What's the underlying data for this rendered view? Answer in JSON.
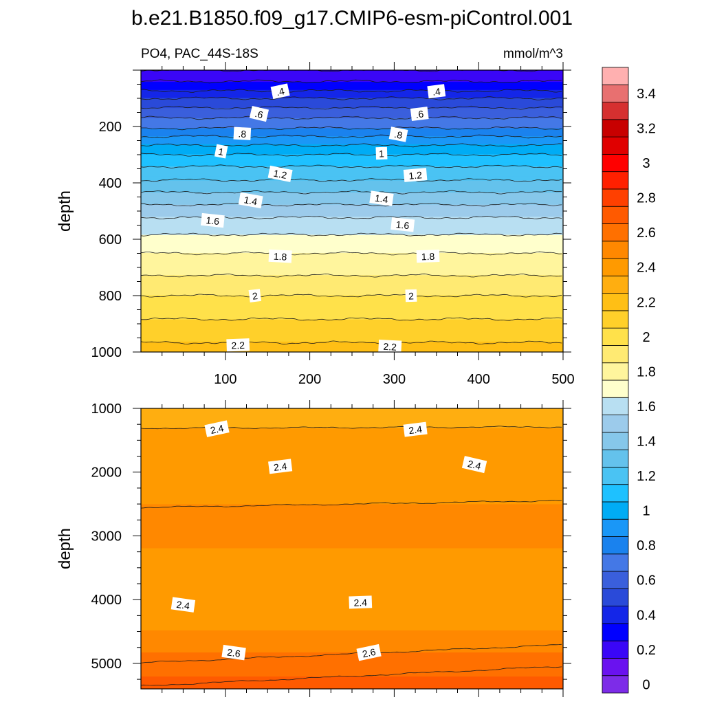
{
  "title": "b.e21.B1850.f09_g17.CMIP6-esm-piControl.001",
  "chart_data": [
    {
      "type": "heatmap",
      "panel": "upper",
      "left_label": "PO4, PAC_44S-18S",
      "right_label": "mmol/m^3",
      "ylabel": "depth",
      "xlabel": "",
      "xlim": [
        0,
        500
      ],
      "ylim": [
        1000,
        0
      ],
      "x_ticks": [
        "100",
        "200",
        "300",
        "400",
        "500"
      ],
      "y_ticks": [
        "200",
        "400",
        "600",
        "800",
        "1000"
      ],
      "contour_levels": [
        0.1,
        0.2,
        0.3,
        0.4,
        0.5,
        0.6,
        0.7,
        0.8,
        0.9,
        1.0,
        1.1,
        1.2,
        1.3,
        1.4,
        1.5,
        1.6,
        1.7,
        1.8,
        1.9,
        2.0,
        2.1,
        2.2,
        2.3,
        2.4
      ],
      "profile": {
        "depth": [
          0,
          60,
          100,
          150,
          200,
          250,
          300,
          350,
          400,
          450,
          500,
          550,
          600,
          650,
          700,
          750,
          800,
          850,
          900,
          950,
          1000
        ],
        "value": [
          0.2,
          0.35,
          0.5,
          0.65,
          0.78,
          0.95,
          1.1,
          1.22,
          1.32,
          1.44,
          1.55,
          1.66,
          1.72,
          1.8,
          1.86,
          1.93,
          2.0,
          2.06,
          2.12,
          2.18,
          2.24
        ]
      },
      "contour_labels": [
        {
          "text": ".4",
          "x": 165,
          "depth": 75
        },
        {
          "text": ".4",
          "x": 350,
          "depth": 75
        },
        {
          "text": ".6",
          "x": 140,
          "depth": 155
        },
        {
          "text": ".6",
          "x": 330,
          "depth": 155
        },
        {
          "text": ".8",
          "x": 120,
          "depth": 225
        },
        {
          "text": ".8",
          "x": 305,
          "depth": 228
        },
        {
          "text": "1",
          "x": 95,
          "depth": 288
        },
        {
          "text": "1",
          "x": 285,
          "depth": 295
        },
        {
          "text": "1.2",
          "x": 165,
          "depth": 368
        },
        {
          "text": "1.2",
          "x": 325,
          "depth": 372
        },
        {
          "text": "1.4",
          "x": 130,
          "depth": 462
        },
        {
          "text": "1.4",
          "x": 285,
          "depth": 455
        },
        {
          "text": "1.6",
          "x": 85,
          "depth": 533
        },
        {
          "text": "1.6",
          "x": 310,
          "depth": 548
        },
        {
          "text": "1.8",
          "x": 165,
          "depth": 660
        },
        {
          "text": "1.8",
          "x": 340,
          "depth": 660
        },
        {
          "text": "2",
          "x": 135,
          "depth": 800
        },
        {
          "text": "2",
          "x": 320,
          "depth": 800
        },
        {
          "text": "2.2",
          "x": 115,
          "depth": 975
        },
        {
          "text": "2.2",
          "x": 295,
          "depth": 980
        }
      ]
    },
    {
      "type": "heatmap",
      "panel": "lower",
      "ylabel": "depth",
      "xlabel": "",
      "xlim": [
        0,
        500
      ],
      "ylim": [
        5400,
        1000
      ],
      "y_ticks": [
        "1000",
        "2000",
        "3000",
        "4000",
        "5000"
      ],
      "contour_levels": [
        2.4,
        2.5,
        2.6,
        2.7
      ],
      "profile": {
        "depth": [
          1000,
          1300,
          1900,
          2500,
          3000,
          3550,
          4000,
          4500,
          4850,
          5200,
          5400
        ],
        "value": [
          2.35,
          2.4,
          2.45,
          2.5,
          2.53,
          2.45,
          2.4,
          2.5,
          2.6,
          2.7,
          2.75
        ]
      },
      "contour_labels": [
        {
          "text": "2.4",
          "x": 90,
          "depth": 1320
        },
        {
          "text": "2.4",
          "x": 325,
          "depth": 1330
        },
        {
          "text": "2.4",
          "x": 165,
          "depth": 1910
        },
        {
          "text": "2.4",
          "x": 395,
          "depth": 1880
        },
        {
          "text": "2.4",
          "x": 50,
          "depth": 4080
        },
        {
          "text": "2.4",
          "x": 260,
          "depth": 4040
        },
        {
          "text": "2.6",
          "x": 110,
          "depth": 4830
        },
        {
          "text": "2.6",
          "x": 270,
          "depth": 4830
        }
      ]
    }
  ],
  "colorbar": {
    "labels": [
      "0",
      "0.2",
      "0.4",
      "0.6",
      "0.8",
      "1",
      "1.2",
      "1.4",
      "1.6",
      "1.8",
      "2",
      "2.2",
      "2.4",
      "2.6",
      "2.8",
      "3",
      "3.2",
      "3.4"
    ],
    "levels": [
      0,
      0.1,
      0.2,
      0.3,
      0.4,
      0.5,
      0.6,
      0.7,
      0.8,
      0.9,
      1.0,
      1.1,
      1.2,
      1.3,
      1.4,
      1.5,
      1.6,
      1.7,
      1.8,
      1.9,
      2.0,
      2.1,
      2.2,
      2.3,
      2.4,
      2.5,
      2.6,
      2.7,
      2.8,
      2.9,
      3.0,
      3.1,
      3.2,
      3.3,
      3.4,
      3.5
    ],
    "colors": [
      "#7d2ce8",
      "#6a12ef",
      "#3a06f7",
      "#0000ff",
      "#1426e8",
      "#2a4ad9",
      "#3a5fdc",
      "#4478e6",
      "#1a82ee",
      "#1a97f7",
      "#00acf5",
      "#1ec1ff",
      "#4ac3f3",
      "#64c2ec",
      "#86c7ea",
      "#9ccbeb",
      "#b8dff2",
      "#ffffcc",
      "#fff59d",
      "#ffea72",
      "#ffe14a",
      "#ffd02a",
      "#ffbf15",
      "#ffae10",
      "#ff9a00",
      "#ff8800",
      "#ff7000",
      "#ff5a00",
      "#ff4000",
      "#ff2000",
      "#ff0000",
      "#e00000",
      "#c80000",
      "#d63030",
      "#e87070",
      "#ffb0b0"
    ]
  }
}
